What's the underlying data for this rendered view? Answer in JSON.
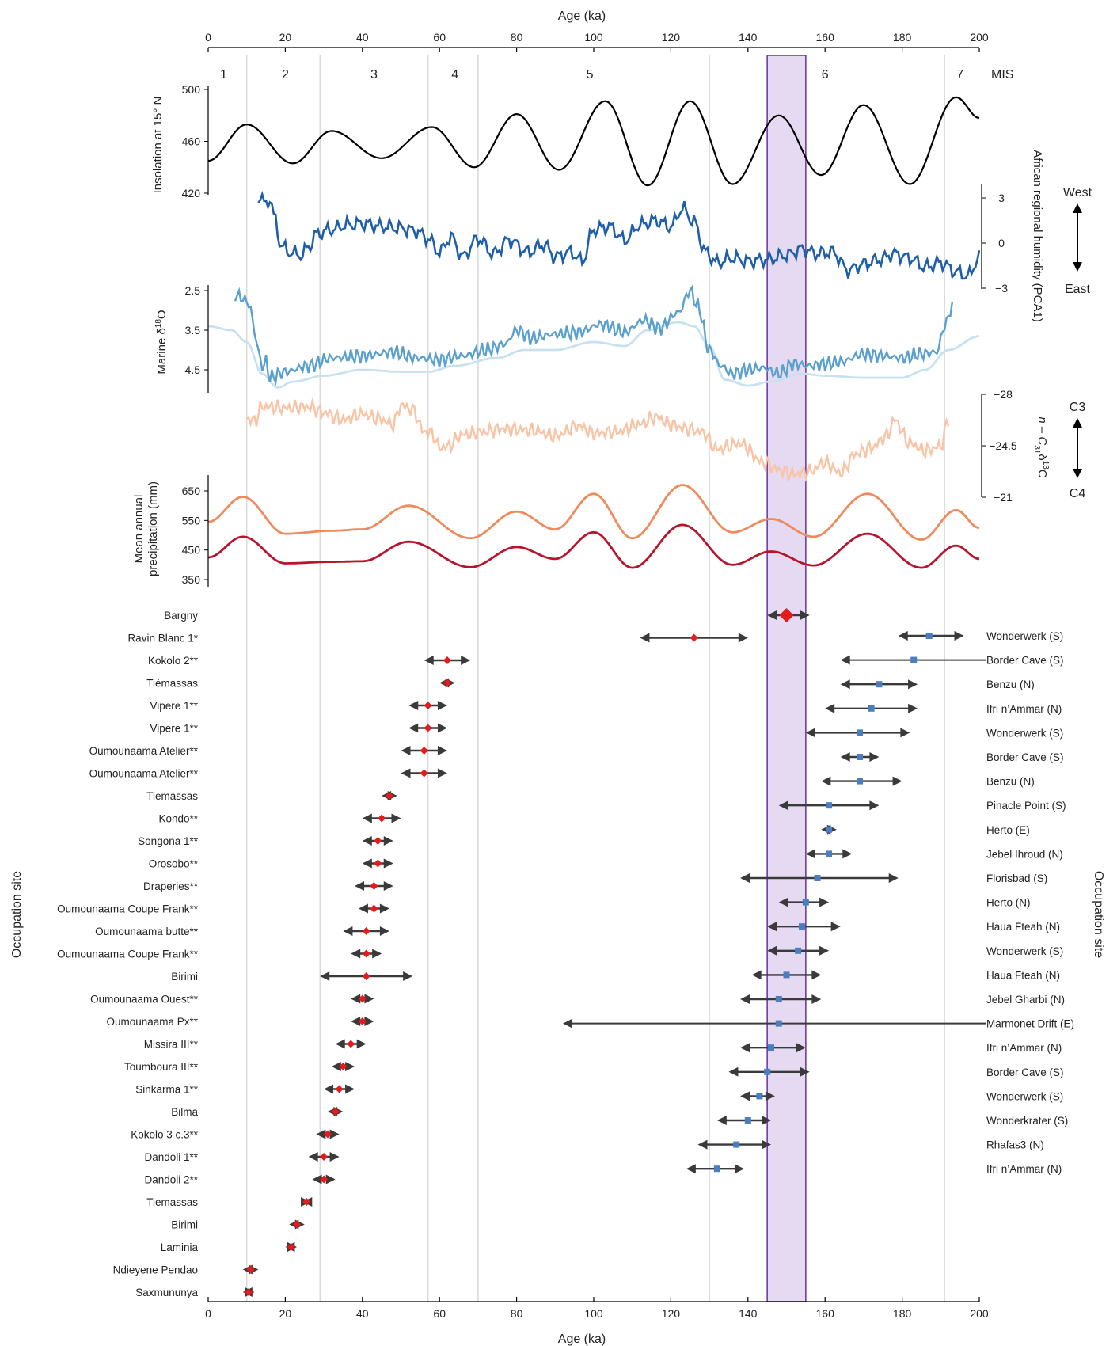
{
  "axes": {
    "top_label": "Age (ka)",
    "bottom_label": "Age (ka)",
    "ticks": [
      "0",
      "20",
      "40",
      "60",
      "80",
      "100",
      "120",
      "140",
      "160",
      "180",
      "200"
    ],
    "xlim": [
      0,
      200
    ]
  },
  "mis": {
    "label": "MIS",
    "stages": [
      {
        "label": "1",
        "x": 4
      },
      {
        "label": "2",
        "x": 20
      },
      {
        "label": "3",
        "x": 43
      },
      {
        "label": "4",
        "x": 64
      },
      {
        "label": "5",
        "x": 99
      },
      {
        "label": "6",
        "x": 160
      },
      {
        "label": "7",
        "x": 195
      }
    ],
    "boundaries": [
      10,
      29,
      57,
      70,
      130,
      191
    ]
  },
  "highlight": {
    "x0": 145,
    "x1": 155,
    "color": "#e5daf1",
    "border": "#6b3fa0"
  },
  "panels": {
    "insolation": {
      "ylabel": "Insolation at 15° N",
      "ticks": [
        "500",
        "460",
        "420"
      ],
      "color": "#000000"
    },
    "humidity": {
      "ylabel": "African regional humidity (PCA1)",
      "ticks": [
        "3",
        "0",
        "−3"
      ],
      "west": "West",
      "east": "East",
      "color": "#1f5fa8"
    },
    "d18o": {
      "ylabel_main": "Marine δ",
      "ylabel_sup": "18",
      "ylabel_end": "O",
      "ticks": [
        "2.5",
        "3.5",
        "4.5"
      ],
      "color_dark": "#5aa0cd",
      "color_light": "#c8e1f0"
    },
    "c13": {
      "ylabel_a": "n – C",
      "ylabel_sub": "31",
      "ylabel_sup": "13",
      "ylabel_b": "δ",
      "ylabel_c": "C",
      "ticks": [
        "−28",
        "−24.5",
        "−21"
      ],
      "top": "C3",
      "bottom": "C4",
      "color": "#f9c4a6"
    },
    "precip": {
      "ylabel1": "Mean annual",
      "ylabel2": "precipitation (mm)",
      "ticks": [
        "650",
        "550",
        "450",
        "350"
      ],
      "color_upper": "#ee8a5c",
      "color_lower": "#b8152d"
    }
  },
  "occupation_label": "Occupation site",
  "chart_data": {
    "type": "scatter",
    "title": "",
    "xlabel": "Age (ka)",
    "xlim": [
      0,
      200
    ],
    "series": [
      {
        "name": "",
        "color": "#e41a1c",
        "points": [
          {
            "site": "Bargny",
            "age": 150,
            "min": 145,
            "max": 156,
            "big": true
          },
          {
            "site": "Ravin Blanc 1*",
            "age": 126,
            "min": 112,
            "max": 140
          },
          {
            "site": "Kokolo 2**",
            "age": 62,
            "min": 56,
            "max": 68
          },
          {
            "site": "Tiémassas",
            "age": 62,
            "min": 60,
            "max": 64
          },
          {
            "site": "Vipere 1**",
            "age": 57,
            "min": 52,
            "max": 62
          },
          {
            "site": "Vipere 1**",
            "age": 57,
            "min": 52,
            "max": 62
          },
          {
            "site": "Oumounaama Atelier**",
            "age": 56,
            "min": 50,
            "max": 62
          },
          {
            "site": "Oumounaama Atelier**",
            "age": 56,
            "min": 50,
            "max": 62
          },
          {
            "site": "Tiemassas",
            "age": 47,
            "min": 45,
            "max": 49
          },
          {
            "site": "Kondo**",
            "age": 45,
            "min": 40,
            "max": 50
          },
          {
            "site": "Songona 1**",
            "age": 44,
            "min": 40,
            "max": 48
          },
          {
            "site": "Orosobo**",
            "age": 44,
            "min": 40,
            "max": 48
          },
          {
            "site": "Draperies**",
            "age": 43,
            "min": 38,
            "max": 48
          },
          {
            "site": "Oumounaama Coupe Frank**",
            "age": 43,
            "min": 39,
            "max": 47
          },
          {
            "site": "Oumounaama butte**",
            "age": 41,
            "min": 35,
            "max": 47
          },
          {
            "site": "Oumounaama Coupe Frank**",
            "age": 41,
            "min": 37,
            "max": 45
          },
          {
            "site": "Birimi",
            "age": 41,
            "min": 29,
            "max": 53
          },
          {
            "site": "Oumounaama Ouest**",
            "age": 40,
            "min": 37,
            "max": 43
          },
          {
            "site": "Oumounaama Px**",
            "age": 40,
            "min": 37,
            "max": 43
          },
          {
            "site": "Missira III**",
            "age": 37,
            "min": 33,
            "max": 41
          },
          {
            "site": "Toumboura III**",
            "age": 35,
            "min": 32,
            "max": 38
          },
          {
            "site": "Sinkarma 1**",
            "age": 34,
            "min": 30,
            "max": 38
          },
          {
            "site": "Bilma",
            "age": 33,
            "min": 31,
            "max": 35
          },
          {
            "site": "Kokolo 3 c.3**",
            "age": 31,
            "min": 28,
            "max": 34
          },
          {
            "site": "Dandoli 1**",
            "age": 30,
            "min": 26,
            "max": 34
          },
          {
            "site": "Dandoli 2**",
            "age": 30,
            "min": 27,
            "max": 33
          },
          {
            "site": "Tiemassas",
            "age": 25.5,
            "min": 24.5,
            "max": 26.5
          },
          {
            "site": "Birimi",
            "age": 23,
            "min": 21,
            "max": 25
          },
          {
            "site": "Laminia",
            "age": 21.5,
            "min": 20,
            "max": 23
          },
          {
            "site": "Ndieyene Pendao",
            "age": 11,
            "min": 9,
            "max": 13
          },
          {
            "site": "Saxmununya",
            "age": 10.5,
            "min": 9,
            "max": 12
          }
        ]
      },
      {
        "name": "",
        "color": "#4a7ec2",
        "points": [
          {
            "site": "Wonderwerk (S)",
            "age": 187,
            "min": 179,
            "max": 196
          },
          {
            "site": "Border Cave (S)",
            "age": 183,
            "min": 164,
            "max": 200
          },
          {
            "site": "Benzu (N)",
            "age": 174,
            "min": 164,
            "max": 184
          },
          {
            "site": "Ifri n’Ammar (N)",
            "age": 172,
            "min": 160,
            "max": 184
          },
          {
            "site": "Wonderwerk (S)",
            "age": 169,
            "min": 155,
            "max": 182
          },
          {
            "site": "Border Cave (S)",
            "age": 169,
            "min": 164,
            "max": 174
          },
          {
            "site": "Benzu (N)",
            "age": 169,
            "min": 159,
            "max": 180
          },
          {
            "site": "Pinacle Point (S)",
            "age": 161,
            "min": 148,
            "max": 174
          },
          {
            "site": "Herto (E)",
            "age": 161,
            "min": 159,
            "max": 163
          },
          {
            "site": "Jebel Ihroud (N)",
            "age": 161,
            "min": 155,
            "max": 167
          },
          {
            "site": "Florisbad (S)",
            "age": 158,
            "min": 138,
            "max": 179
          },
          {
            "site": "Herto (N)",
            "age": 155,
            "min": 148,
            "max": 161
          },
          {
            "site": "Haua Fteah (N)",
            "age": 154,
            "min": 145,
            "max": 164
          },
          {
            "site": "Wonderwerk (S)",
            "age": 153,
            "min": 145,
            "max": 161
          },
          {
            "site": "Haua Fteah (N)",
            "age": 150,
            "min": 141,
            "max": 159
          },
          {
            "site": "Jebel Gharbi (N)",
            "age": 148,
            "min": 138,
            "max": 159
          },
          {
            "site": "Marmonet Drift (E)",
            "age": 148,
            "min": 92,
            "max": 200
          },
          {
            "site": "Ifri n’Ammar (N)",
            "age": 146,
            "min": 138,
            "max": 155
          },
          {
            "site": "Border Cave (S)",
            "age": 145,
            "min": 135,
            "max": 156
          },
          {
            "site": "Wonderwerk (S)",
            "age": 143,
            "min": 138,
            "max": 147
          },
          {
            "site": "Wonderkrater (S)",
            "age": 140,
            "min": 132,
            "max": 146
          },
          {
            "site": "Rhafas3 (N)",
            "age": 137,
            "min": 127,
            "max": 146
          },
          {
            "site": "Ifri n’Ammar (N)",
            "age": 132,
            "min": 124,
            "max": 139
          }
        ]
      }
    ]
  }
}
